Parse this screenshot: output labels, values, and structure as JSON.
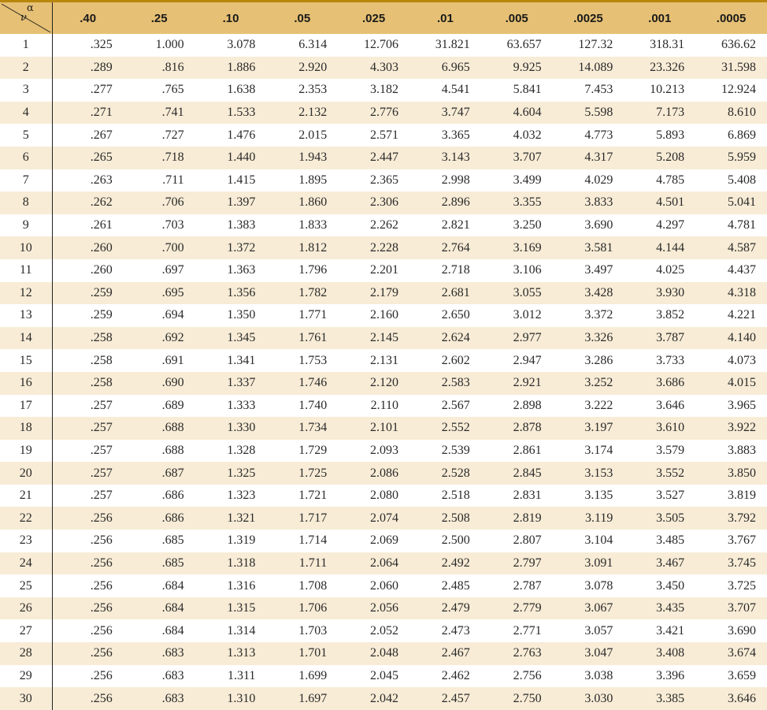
{
  "table": {
    "corner": {
      "alpha": "α",
      "nu": "ν"
    },
    "alpha_headers": [
      ".40",
      ".25",
      ".10",
      ".05",
      ".025",
      ".01",
      ".005",
      ".0025",
      ".001",
      ".0005"
    ],
    "rows": [
      {
        "nu": "1",
        "values": [
          ".325",
          "1.000",
          "3.078",
          "6.314",
          "12.706",
          "31.821",
          "63.657",
          "127.32",
          "318.31",
          "636.62"
        ]
      },
      {
        "nu": "2",
        "values": [
          ".289",
          ".816",
          "1.886",
          "2.920",
          "4.303",
          "6.965",
          "9.925",
          "14.089",
          "23.326",
          "31.598"
        ]
      },
      {
        "nu": "3",
        "values": [
          ".277",
          ".765",
          "1.638",
          "2.353",
          "3.182",
          "4.541",
          "5.841",
          "7.453",
          "10.213",
          "12.924"
        ]
      },
      {
        "nu": "4",
        "values": [
          ".271",
          ".741",
          "1.533",
          "2.132",
          "2.776",
          "3.747",
          "4.604",
          "5.598",
          "7.173",
          "8.610"
        ]
      },
      {
        "nu": "5",
        "values": [
          ".267",
          ".727",
          "1.476",
          "2.015",
          "2.571",
          "3.365",
          "4.032",
          "4.773",
          "5.893",
          "6.869"
        ]
      },
      {
        "nu": "6",
        "values": [
          ".265",
          ".718",
          "1.440",
          "1.943",
          "2.447",
          "3.143",
          "3.707",
          "4.317",
          "5.208",
          "5.959"
        ]
      },
      {
        "nu": "7",
        "values": [
          ".263",
          ".711",
          "1.415",
          "1.895",
          "2.365",
          "2.998",
          "3.499",
          "4.029",
          "4.785",
          "5.408"
        ]
      },
      {
        "nu": "8",
        "values": [
          ".262",
          ".706",
          "1.397",
          "1.860",
          "2.306",
          "2.896",
          "3.355",
          "3.833",
          "4.501",
          "5.041"
        ]
      },
      {
        "nu": "9",
        "values": [
          ".261",
          ".703",
          "1.383",
          "1.833",
          "2.262",
          "2.821",
          "3.250",
          "3.690",
          "4.297",
          "4.781"
        ]
      },
      {
        "nu": "10",
        "values": [
          ".260",
          ".700",
          "1.372",
          "1.812",
          "2.228",
          "2.764",
          "3.169",
          "3.581",
          "4.144",
          "4.587"
        ]
      },
      {
        "nu": "11",
        "values": [
          ".260",
          ".697",
          "1.363",
          "1.796",
          "2.201",
          "2.718",
          "3.106",
          "3.497",
          "4.025",
          "4.437"
        ]
      },
      {
        "nu": "12",
        "values": [
          ".259",
          ".695",
          "1.356",
          "1.782",
          "2.179",
          "2.681",
          "3.055",
          "3.428",
          "3.930",
          "4.318"
        ]
      },
      {
        "nu": "13",
        "values": [
          ".259",
          ".694",
          "1.350",
          "1.771",
          "2.160",
          "2.650",
          "3.012",
          "3.372",
          "3.852",
          "4.221"
        ]
      },
      {
        "nu": "14",
        "values": [
          ".258",
          ".692",
          "1.345",
          "1.761",
          "2.145",
          "2.624",
          "2.977",
          "3.326",
          "3.787",
          "4.140"
        ]
      },
      {
        "nu": "15",
        "values": [
          ".258",
          ".691",
          "1.341",
          "1.753",
          "2.131",
          "2.602",
          "2.947",
          "3.286",
          "3.733",
          "4.073"
        ]
      },
      {
        "nu": "16",
        "values": [
          ".258",
          ".690",
          "1.337",
          "1.746",
          "2.120",
          "2.583",
          "2.921",
          "3.252",
          "3.686",
          "4.015"
        ]
      },
      {
        "nu": "17",
        "values": [
          ".257",
          ".689",
          "1.333",
          "1.740",
          "2.110",
          "2.567",
          "2.898",
          "3.222",
          "3.646",
          "3.965"
        ]
      },
      {
        "nu": "18",
        "values": [
          ".257",
          ".688",
          "1.330",
          "1.734",
          "2.101",
          "2.552",
          "2.878",
          "3.197",
          "3.610",
          "3.922"
        ]
      },
      {
        "nu": "19",
        "values": [
          ".257",
          ".688",
          "1.328",
          "1.729",
          "2.093",
          "2.539",
          "2.861",
          "3.174",
          "3.579",
          "3.883"
        ]
      },
      {
        "nu": "20",
        "values": [
          ".257",
          ".687",
          "1.325",
          "1.725",
          "2.086",
          "2.528",
          "2.845",
          "3.153",
          "3.552",
          "3.850"
        ]
      },
      {
        "nu": "21",
        "values": [
          ".257",
          ".686",
          "1.323",
          "1.721",
          "2.080",
          "2.518",
          "2.831",
          "3.135",
          "3.527",
          "3.819"
        ]
      },
      {
        "nu": "22",
        "values": [
          ".256",
          ".686",
          "1.321",
          "1.717",
          "2.074",
          "2.508",
          "2.819",
          "3.119",
          "3.505",
          "3.792"
        ]
      },
      {
        "nu": "23",
        "values": [
          ".256",
          ".685",
          "1.319",
          "1.714",
          "2.069",
          "2.500",
          "2.807",
          "3.104",
          "3.485",
          "3.767"
        ]
      },
      {
        "nu": "24",
        "values": [
          ".256",
          ".685",
          "1.318",
          "1.711",
          "2.064",
          "2.492",
          "2.797",
          "3.091",
          "3.467",
          "3.745"
        ]
      },
      {
        "nu": "25",
        "values": [
          ".256",
          ".684",
          "1.316",
          "1.708",
          "2.060",
          "2.485",
          "2.787",
          "3.078",
          "3.450",
          "3.725"
        ]
      },
      {
        "nu": "26",
        "values": [
          ".256",
          ".684",
          "1.315",
          "1.706",
          "2.056",
          "2.479",
          "2.779",
          "3.067",
          "3.435",
          "3.707"
        ]
      },
      {
        "nu": "27",
        "values": [
          ".256",
          ".684",
          "1.314",
          "1.703",
          "2.052",
          "2.473",
          "2.771",
          "3.057",
          "3.421",
          "3.690"
        ]
      },
      {
        "nu": "28",
        "values": [
          ".256",
          ".683",
          "1.313",
          "1.701",
          "2.048",
          "2.467",
          "2.763",
          "3.047",
          "3.408",
          "3.674"
        ]
      },
      {
        "nu": "29",
        "values": [
          ".256",
          ".683",
          "1.311",
          "1.699",
          "2.045",
          "2.462",
          "2.756",
          "3.038",
          "3.396",
          "3.659"
        ]
      },
      {
        "nu": "30",
        "values": [
          ".256",
          ".683",
          "1.310",
          "1.697",
          "2.042",
          "2.457",
          "2.750",
          "3.030",
          "3.385",
          "3.646"
        ]
      }
    ]
  },
  "colors": {
    "header_bg": "#e6c074",
    "top_rule": "#b8860b",
    "stripe_bg": "#f8ecd6",
    "text": "#2a2a2a"
  }
}
